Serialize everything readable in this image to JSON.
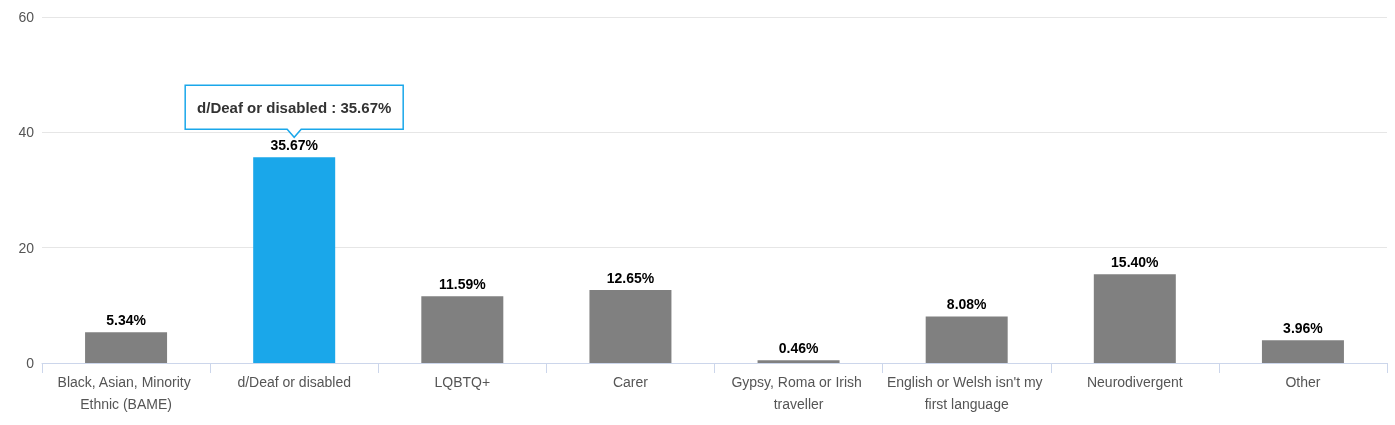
{
  "chart_data": {
    "type": "bar",
    "categories": [
      "Black, Asian, Minority Ethnic (BAME)",
      "d/Deaf or disabled",
      "LQBTQ+",
      "Carer",
      "Gypsy, Roma or Irish traveller",
      "English or Welsh isn't my first language",
      "Neurodivergent",
      "Other"
    ],
    "values": [
      5.34,
      35.67,
      11.59,
      12.65,
      0.46,
      8.08,
      15.4,
      3.96
    ],
    "colors": [
      "#808080",
      "#1aa7ea",
      "#808080",
      "#808080",
      "#808080",
      "#808080",
      "#808080",
      "#808080"
    ],
    "value_labels": [
      "5.34%",
      "35.67%",
      "11.59%",
      "12.65%",
      "0.46%",
      "8.08%",
      "15.40%",
      "3.96%"
    ],
    "ylim": [
      0,
      60
    ],
    "yticks": [
      0,
      20,
      40,
      60
    ],
    "grid": "y",
    "annotations": [
      {
        "text": "d/Deaf or disabled : 35.67%",
        "x": "d/Deaf or disabled",
        "y": 35.67
      }
    ]
  }
}
